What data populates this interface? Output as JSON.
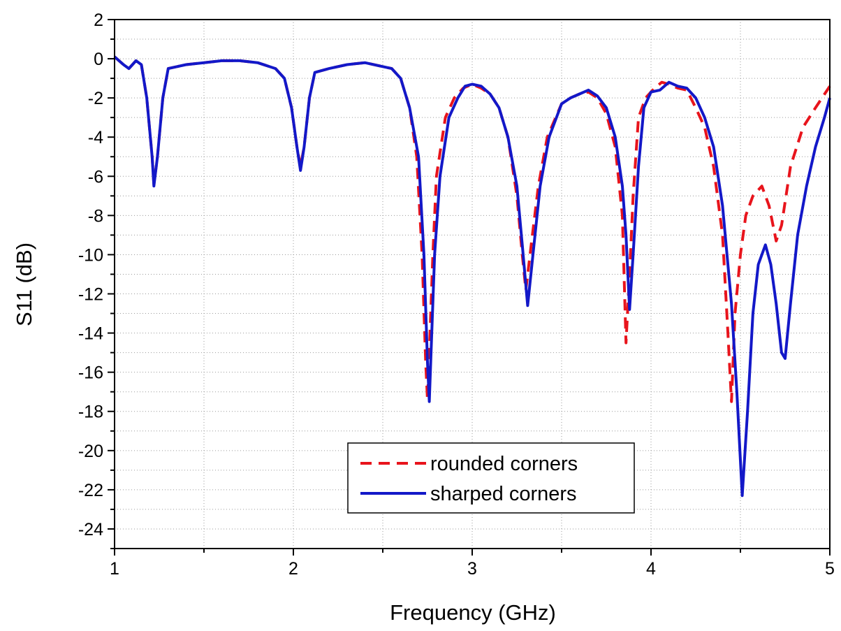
{
  "chart_data": {
    "type": "line",
    "xlabel": "Frequency (GHz)",
    "ylabel": "S11 (dB)",
    "xlim": [
      1,
      5
    ],
    "ylim": [
      -25,
      2
    ],
    "x_ticks": [
      "1",
      "2",
      "3",
      "4",
      "5"
    ],
    "y_ticks": [
      "2",
      "0",
      "-2",
      "-4",
      "-6",
      "-8",
      "-10",
      "-12",
      "-14",
      "-16",
      "-18",
      "-20",
      "-22",
      "-24"
    ],
    "grid": true,
    "legend_position": "bottom-center",
    "series": [
      {
        "name": "rounded corners",
        "color": "#e8141c",
        "style": "dashed",
        "points": [
          [
            1.0,
            0.1
          ],
          [
            1.05,
            -0.3
          ],
          [
            1.08,
            -0.5
          ],
          [
            1.12,
            -0.1
          ],
          [
            1.15,
            -0.3
          ],
          [
            1.18,
            -2.0
          ],
          [
            1.21,
            -5.0
          ],
          [
            1.22,
            -6.4
          ],
          [
            1.24,
            -5.0
          ],
          [
            1.27,
            -2.0
          ],
          [
            1.3,
            -0.5
          ],
          [
            1.4,
            -0.3
          ],
          [
            1.5,
            -0.2
          ],
          [
            1.6,
            -0.1
          ],
          [
            1.7,
            -0.1
          ],
          [
            1.8,
            -0.2
          ],
          [
            1.9,
            -0.5
          ],
          [
            1.95,
            -1.0
          ],
          [
            1.99,
            -2.5
          ],
          [
            2.02,
            -4.5
          ],
          [
            2.04,
            -5.5
          ],
          [
            2.06,
            -4.5
          ],
          [
            2.09,
            -2.0
          ],
          [
            2.12,
            -0.7
          ],
          [
            2.2,
            -0.5
          ],
          [
            2.3,
            -0.3
          ],
          [
            2.4,
            -0.2
          ],
          [
            2.5,
            -0.4
          ],
          [
            2.55,
            -0.5
          ],
          [
            2.6,
            -1.0
          ],
          [
            2.65,
            -2.5
          ],
          [
            2.69,
            -5.0
          ],
          [
            2.72,
            -10.0
          ],
          [
            2.74,
            -15.5
          ],
          [
            2.75,
            -17.4
          ],
          [
            2.76,
            -15.0
          ],
          [
            2.78,
            -10.0
          ],
          [
            2.8,
            -6.0
          ],
          [
            2.85,
            -3.0
          ],
          [
            2.9,
            -2.0
          ],
          [
            2.95,
            -1.5
          ],
          [
            3.0,
            -1.3
          ],
          [
            3.05,
            -1.5
          ],
          [
            3.1,
            -1.8
          ],
          [
            3.15,
            -2.5
          ],
          [
            3.2,
            -4.0
          ],
          [
            3.25,
            -7.0
          ],
          [
            3.28,
            -10.0
          ],
          [
            3.3,
            -11.8
          ],
          [
            3.33,
            -9.5
          ],
          [
            3.37,
            -6.5
          ],
          [
            3.42,
            -4.0
          ],
          [
            3.5,
            -2.3
          ],
          [
            3.55,
            -2.0
          ],
          [
            3.6,
            -1.8
          ],
          [
            3.65,
            -1.7
          ],
          [
            3.7,
            -2.0
          ],
          [
            3.75,
            -2.8
          ],
          [
            3.8,
            -4.5
          ],
          [
            3.84,
            -8.0
          ],
          [
            3.86,
            -14.5
          ],
          [
            3.88,
            -11.0
          ],
          [
            3.9,
            -7.0
          ],
          [
            3.93,
            -3.0
          ],
          [
            3.97,
            -2.0
          ],
          [
            4.02,
            -1.5
          ],
          [
            4.06,
            -1.2
          ],
          [
            4.1,
            -1.3
          ],
          [
            4.15,
            -1.5
          ],
          [
            4.2,
            -1.6
          ],
          [
            4.25,
            -2.5
          ],
          [
            4.3,
            -3.5
          ],
          [
            4.35,
            -5.5
          ],
          [
            4.4,
            -9.0
          ],
          [
            4.43,
            -14.0
          ],
          [
            4.45,
            -17.5
          ],
          [
            4.47,
            -13.0
          ],
          [
            4.5,
            -10.0
          ],
          [
            4.53,
            -8.0
          ],
          [
            4.57,
            -7.0
          ],
          [
            4.62,
            -6.5
          ],
          [
            4.66,
            -7.5
          ],
          [
            4.7,
            -9.3
          ],
          [
            4.73,
            -8.5
          ],
          [
            4.78,
            -5.5
          ],
          [
            4.85,
            -3.5
          ],
          [
            4.92,
            -2.5
          ],
          [
            5.0,
            -1.4
          ]
        ]
      },
      {
        "name": "sharped corners",
        "color": "#1318c8",
        "style": "solid",
        "points": [
          [
            1.0,
            0.1
          ],
          [
            1.05,
            -0.3
          ],
          [
            1.08,
            -0.5
          ],
          [
            1.12,
            -0.1
          ],
          [
            1.15,
            -0.3
          ],
          [
            1.18,
            -2.0
          ],
          [
            1.21,
            -5.0
          ],
          [
            1.22,
            -6.5
          ],
          [
            1.24,
            -5.0
          ],
          [
            1.27,
            -2.0
          ],
          [
            1.3,
            -0.5
          ],
          [
            1.4,
            -0.3
          ],
          [
            1.5,
            -0.2
          ],
          [
            1.6,
            -0.1
          ],
          [
            1.7,
            -0.1
          ],
          [
            1.8,
            -0.2
          ],
          [
            1.9,
            -0.5
          ],
          [
            1.95,
            -1.0
          ],
          [
            1.99,
            -2.5
          ],
          [
            2.02,
            -4.5
          ],
          [
            2.04,
            -5.7
          ],
          [
            2.06,
            -4.5
          ],
          [
            2.09,
            -2.0
          ],
          [
            2.12,
            -0.7
          ],
          [
            2.2,
            -0.5
          ],
          [
            2.3,
            -0.3
          ],
          [
            2.4,
            -0.2
          ],
          [
            2.5,
            -0.4
          ],
          [
            2.55,
            -0.5
          ],
          [
            2.6,
            -1.0
          ],
          [
            2.65,
            -2.5
          ],
          [
            2.7,
            -5.0
          ],
          [
            2.73,
            -10.0
          ],
          [
            2.75,
            -15.5
          ],
          [
            2.76,
            -17.5
          ],
          [
            2.77,
            -15.0
          ],
          [
            2.79,
            -10.0
          ],
          [
            2.82,
            -6.0
          ],
          [
            2.87,
            -3.0
          ],
          [
            2.92,
            -2.0
          ],
          [
            2.96,
            -1.4
          ],
          [
            3.0,
            -1.3
          ],
          [
            3.05,
            -1.4
          ],
          [
            3.1,
            -1.8
          ],
          [
            3.15,
            -2.5
          ],
          [
            3.2,
            -4.0
          ],
          [
            3.25,
            -6.5
          ],
          [
            3.28,
            -9.5
          ],
          [
            3.31,
            -12.6
          ],
          [
            3.34,
            -10.0
          ],
          [
            3.38,
            -6.5
          ],
          [
            3.43,
            -4.0
          ],
          [
            3.5,
            -2.3
          ],
          [
            3.55,
            -2.0
          ],
          [
            3.6,
            -1.8
          ],
          [
            3.65,
            -1.6
          ],
          [
            3.7,
            -1.9
          ],
          [
            3.75,
            -2.5
          ],
          [
            3.8,
            -4.0
          ],
          [
            3.84,
            -6.5
          ],
          [
            3.86,
            -9.0
          ],
          [
            3.88,
            -12.8
          ],
          [
            3.9,
            -10.0
          ],
          [
            3.93,
            -5.5
          ],
          [
            3.96,
            -2.5
          ],
          [
            4.0,
            -1.7
          ],
          [
            4.05,
            -1.6
          ],
          [
            4.1,
            -1.2
          ],
          [
            4.15,
            -1.4
          ],
          [
            4.2,
            -1.5
          ],
          [
            4.25,
            -2.0
          ],
          [
            4.3,
            -3.0
          ],
          [
            4.35,
            -4.5
          ],
          [
            4.4,
            -7.5
          ],
          [
            4.45,
            -12.5
          ],
          [
            4.48,
            -17.0
          ],
          [
            4.51,
            -22.3
          ],
          [
            4.54,
            -18.0
          ],
          [
            4.57,
            -13.0
          ],
          [
            4.6,
            -10.5
          ],
          [
            4.64,
            -9.5
          ],
          [
            4.67,
            -10.5
          ],
          [
            4.7,
            -12.5
          ],
          [
            4.73,
            -15.0
          ],
          [
            4.75,
            -15.3
          ],
          [
            4.78,
            -12.5
          ],
          [
            4.82,
            -9.0
          ],
          [
            4.87,
            -6.5
          ],
          [
            4.92,
            -4.5
          ],
          [
            4.97,
            -3.0
          ],
          [
            5.0,
            -2.0
          ]
        ]
      }
    ]
  }
}
